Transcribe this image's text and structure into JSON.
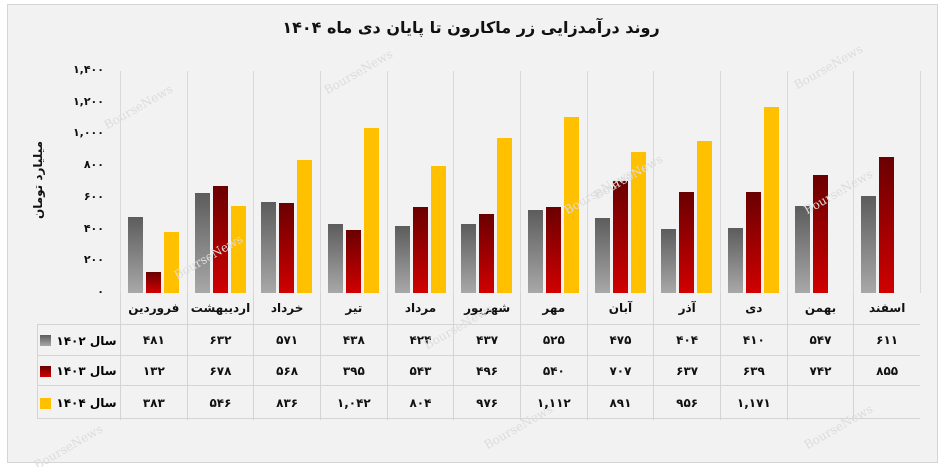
{
  "title": "روند درآمدزایی زر ماکارون تا پایان دی ماه  ۱۴۰۴",
  "watermark": "BourseNews",
  "chart_data": {
    "type": "bar",
    "title": "روند درآمدزایی زر ماکارون تا پایان دی ماه 1404",
    "xlabel": "",
    "ylabel": "میلیارد تومان",
    "ylim": [
      0,
      1400
    ],
    "yticks": [
      0,
      200,
      400,
      600,
      800,
      1000,
      1200,
      1400
    ],
    "ytick_labels": [
      "۰",
      "۲۰۰",
      "۴۰۰",
      "۶۰۰",
      "۸۰۰",
      "۱,۰۰۰",
      "۱,۲۰۰",
      "۱,۴۰۰"
    ],
    "grid": "vertical category dividers",
    "legend_position": "data table below chart",
    "categories": [
      "فروردین",
      "اردیبهشت",
      "خرداد",
      "تیر",
      "مرداد",
      "شهریور",
      "مهر",
      "آبان",
      "آذر",
      "دی",
      "بهمن",
      "اسفند"
    ],
    "series": [
      {
        "name": "سال ۱۴۰۲",
        "color": "#8c8c8c",
        "values": [
          481,
          632,
          571,
          438,
          424,
          437,
          525,
          475,
          404,
          410,
          547,
          611
        ],
        "labels": [
          "۴۸۱",
          "۶۳۲",
          "۵۷۱",
          "۴۳۸",
          "۴۲۴",
          "۴۳۷",
          "۵۲۵",
          "۴۷۵",
          "۴۰۴",
          "۴۱۰",
          "۵۴۷",
          "۶۱۱"
        ]
      },
      {
        "name": "سال ۱۴۰۳",
        "color": "#a00000",
        "values": [
          132,
          678,
          568,
          395,
          543,
          496,
          540,
          707,
          637,
          639,
          742,
          855
        ],
        "labels": [
          "۱۳۲",
          "۶۷۸",
          "۵۶۸",
          "۳۹۵",
          "۵۴۳",
          "۴۹۶",
          "۵۴۰",
          "۷۰۷",
          "۶۳۷",
          "۶۳۹",
          "۷۴۲",
          "۸۵۵"
        ]
      },
      {
        "name": "سال ۱۴۰۴",
        "color": "#ffc000",
        "values": [
          383,
          546,
          836,
          1042,
          804,
          976,
          1112,
          891,
          956,
          1171,
          null,
          null
        ],
        "labels": [
          "۳۸۳",
          "۵۴۶",
          "۸۳۶",
          "۱,۰۴۲",
          "۸۰۴",
          "۹۷۶",
          "۱,۱۱۲",
          "۸۹۱",
          "۹۵۶",
          "۱,۱۷۱",
          "",
          ""
        ]
      }
    ]
  }
}
